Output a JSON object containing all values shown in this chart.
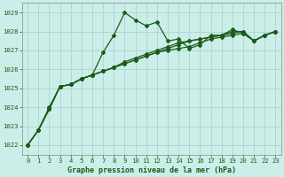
{
  "title": "Graphe pression niveau de la mer (hPa)",
  "background_color": "#cceee8",
  "grid_color": "#aacccc",
  "line_color": "#1a5c1a",
  "xlim": [
    -0.5,
    23.5
  ],
  "ylim": [
    1021.5,
    1029.5
  ],
  "yticks": [
    1022,
    1023,
    1024,
    1025,
    1026,
    1027,
    1028,
    1029
  ],
  "xticks": [
    0,
    1,
    2,
    3,
    4,
    5,
    6,
    7,
    8,
    9,
    10,
    11,
    12,
    13,
    14,
    15,
    16,
    17,
    18,
    19,
    20,
    21,
    22,
    23
  ],
  "series": [
    [
      1022.0,
      1022.8,
      1023.9,
      1025.1,
      1025.2,
      1025.5,
      1025.7,
      1026.9,
      1027.8,
      1029.0,
      1028.6,
      1028.3,
      1028.5,
      1027.5,
      1027.6,
      1027.1,
      1027.3,
      1027.8,
      1027.8,
      1028.1,
      1027.9,
      1027.5,
      1027.8,
      1028.0
    ],
    [
      1022.0,
      1022.8,
      1023.9,
      1025.1,
      1025.2,
      1025.5,
      1025.7,
      1025.9,
      1026.1,
      1026.3,
      1026.5,
      1026.7,
      1026.9,
      1027.1,
      1027.3,
      1027.5,
      1027.6,
      1027.7,
      1027.8,
      1027.9,
      1028.0,
      1027.5,
      1027.8,
      1028.0
    ],
    [
      1022.0,
      1022.8,
      1023.9,
      1025.1,
      1025.2,
      1025.5,
      1025.7,
      1025.9,
      1026.1,
      1026.3,
      1026.5,
      1026.7,
      1026.9,
      1027.0,
      1027.1,
      1027.2,
      1027.4,
      1027.6,
      1027.7,
      1027.8,
      1027.9,
      1027.5,
      1027.8,
      1028.0
    ],
    [
      1022.0,
      1022.8,
      1024.0,
      1025.1,
      1025.2,
      1025.5,
      1025.7,
      1025.9,
      1026.1,
      1026.4,
      1026.6,
      1026.8,
      1027.0,
      1027.2,
      1027.4,
      1027.5,
      1027.6,
      1027.7,
      1027.8,
      1028.0,
      1028.0,
      1027.5,
      1027.8,
      1028.0
    ]
  ],
  "title_fontsize": 6.0,
  "tick_fontsize": 5.2
}
